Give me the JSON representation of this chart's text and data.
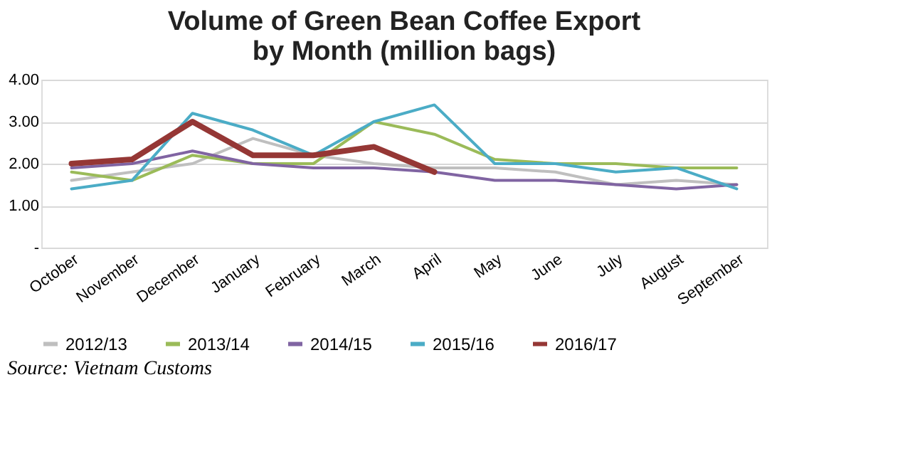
{
  "chart_data": {
    "type": "line",
    "title": "Volume of Green Bean Coffee Export\nby Month (million bags)",
    "categories": [
      "October",
      "November",
      "December",
      "January",
      "February",
      "March",
      "April",
      "May",
      "June",
      "July",
      "August",
      "September"
    ],
    "series": [
      {
        "name": "2012/13",
        "color": "#bfbfbf",
        "values": [
          1.6,
          1.8,
          2.0,
          2.6,
          2.2,
          2.0,
          1.9,
          1.9,
          1.8,
          1.5,
          1.6,
          1.5
        ]
      },
      {
        "name": "2013/14",
        "color": "#9bbb59",
        "values": [
          1.8,
          1.6,
          2.2,
          2.0,
          2.0,
          3.0,
          2.7,
          2.1,
          2.0,
          2.0,
          1.9,
          1.9
        ]
      },
      {
        "name": "2014/15",
        "color": "#8064a2",
        "values": [
          1.9,
          2.0,
          2.3,
          2.0,
          1.9,
          1.9,
          1.8,
          1.6,
          1.6,
          1.5,
          1.4,
          1.5
        ]
      },
      {
        "name": "2015/16",
        "color": "#4bacc6",
        "values": [
          1.4,
          1.6,
          3.2,
          2.8,
          2.2,
          3.0,
          3.4,
          2.0,
          2.0,
          1.8,
          1.9,
          1.4
        ]
      },
      {
        "name": "2016/17",
        "color": "#953735",
        "values": [
          2.0,
          2.1,
          3.0,
          2.2,
          2.2,
          2.4,
          1.8,
          null,
          null,
          null,
          null,
          null
        ]
      }
    ],
    "ylim": [
      0,
      4
    ],
    "yticks": [
      {
        "value": 0,
        "label": "-"
      },
      {
        "value": 1,
        "label": "1.00"
      },
      {
        "value": 2,
        "label": "2.00"
      },
      {
        "value": 3,
        "label": "3.00"
      },
      {
        "value": 4,
        "label": "4.00"
      }
    ],
    "grid": "y",
    "legend": "bottom",
    "marker": "none",
    "line_style": "solid",
    "annotations": [
      "Source: Vietnam Customs"
    ]
  }
}
